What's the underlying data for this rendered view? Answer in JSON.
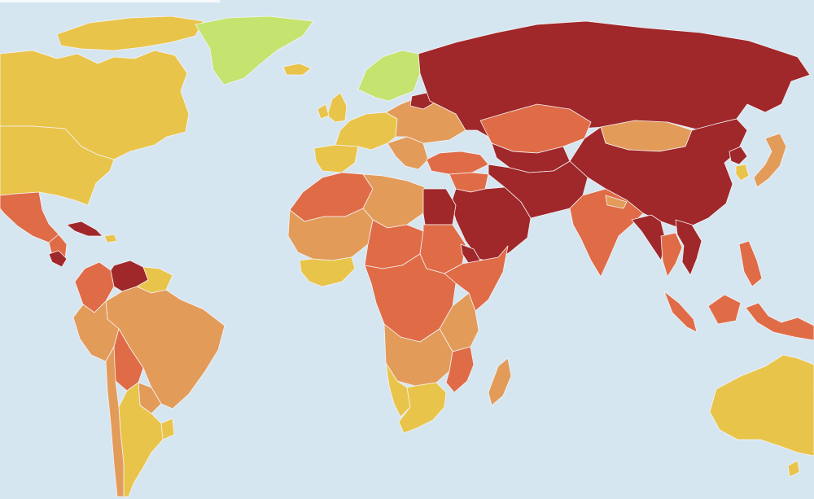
{
  "legend": {
    "levels": [
      {
        "key": "good",
        "color": "#c4e36f"
      },
      {
        "key": "satisfactory",
        "color": "#e9c44a"
      },
      {
        "key": "problematic",
        "color": "#e39b5a"
      },
      {
        "key": "difficult",
        "color": "#e06b47"
      },
      {
        "key": "very_serious",
        "color": "#a0272a"
      }
    ]
  },
  "ocean_color": "#d6e6f1",
  "border_color": "#f4f4f4",
  "regions": [
    {
      "id": "canada",
      "level": "satisfactory"
    },
    {
      "id": "arctic-islands",
      "level": "satisfactory"
    },
    {
      "id": "usa",
      "level": "satisfactory"
    },
    {
      "id": "mexico",
      "level": "difficult"
    },
    {
      "id": "central-america",
      "level": "difficult"
    },
    {
      "id": "nicaragua",
      "level": "very_serious"
    },
    {
      "id": "cuba",
      "level": "very_serious"
    },
    {
      "id": "greenland",
      "level": "good"
    },
    {
      "id": "iceland",
      "level": "satisfactory"
    },
    {
      "id": "scandinavia",
      "level": "good"
    },
    {
      "id": "uk",
      "level": "satisfactory"
    },
    {
      "id": "ireland",
      "level": "satisfactory"
    },
    {
      "id": "iberia",
      "level": "satisfactory"
    },
    {
      "id": "western-europe",
      "level": "satisfactory"
    },
    {
      "id": "eastern-europe",
      "level": "problematic"
    },
    {
      "id": "balkans",
      "level": "problematic"
    },
    {
      "id": "belarus",
      "level": "very_serious"
    },
    {
      "id": "russia",
      "level": "very_serious"
    },
    {
      "id": "turkey",
      "level": "difficult"
    },
    {
      "id": "kazakhstan",
      "level": "difficult"
    },
    {
      "id": "central-asia",
      "level": "very_serious"
    },
    {
      "id": "mongolia",
      "level": "problematic"
    },
    {
      "id": "china",
      "level": "very_serious"
    },
    {
      "id": "korea-north",
      "level": "very_serious"
    },
    {
      "id": "korea-south",
      "level": "satisfactory"
    },
    {
      "id": "japan",
      "level": "problematic"
    },
    {
      "id": "middle-east",
      "level": "very_serious"
    },
    {
      "id": "levant",
      "level": "difficult"
    },
    {
      "id": "iran-afg-pak",
      "level": "very_serious"
    },
    {
      "id": "india",
      "level": "difficult"
    },
    {
      "id": "nepal",
      "level": "problematic"
    },
    {
      "id": "myanmar-bangladesh",
      "level": "very_serious"
    },
    {
      "id": "thailand",
      "level": "difficult"
    },
    {
      "id": "vietnam-laos",
      "level": "very_serious"
    },
    {
      "id": "sumatra",
      "level": "difficult"
    },
    {
      "id": "borneo",
      "level": "difficult"
    },
    {
      "id": "sulawesi-png",
      "level": "difficult"
    },
    {
      "id": "philippines",
      "level": "difficult"
    },
    {
      "id": "australia",
      "level": "satisfactory"
    },
    {
      "id": "nz",
      "level": "satisfactory"
    },
    {
      "id": "north-africa-west",
      "level": "difficult"
    },
    {
      "id": "north-africa-central",
      "level": "problematic"
    },
    {
      "id": "egypt",
      "level": "very_serious"
    },
    {
      "id": "west-africa",
      "level": "problematic"
    },
    {
      "id": "west-africa-coast",
      "level": "satisfactory"
    },
    {
      "id": "sahel",
      "level": "difficult"
    },
    {
      "id": "sudan",
      "level": "difficult"
    },
    {
      "id": "horn-of-africa",
      "level": "difficult"
    },
    {
      "id": "eritrea",
      "level": "very_serious"
    },
    {
      "id": "central-africa",
      "level": "difficult"
    },
    {
      "id": "east-africa",
      "level": "problematic"
    },
    {
      "id": "southern-africa",
      "level": "problematic"
    },
    {
      "id": "namibia",
      "level": "satisfactory"
    },
    {
      "id": "south-africa",
      "level": "satisfactory"
    },
    {
      "id": "mozambique",
      "level": "difficult"
    },
    {
      "id": "madagascar",
      "level": "problematic"
    },
    {
      "id": "colombia",
      "level": "difficult"
    },
    {
      "id": "venezuela",
      "level": "very_serious"
    },
    {
      "id": "guianas",
      "level": "satisfactory"
    },
    {
      "id": "brazil",
      "level": "problematic"
    },
    {
      "id": "peru",
      "level": "problematic"
    },
    {
      "id": "bolivia",
      "level": "difficult"
    },
    {
      "id": "paraguay",
      "level": "problematic"
    },
    {
      "id": "argentina",
      "level": "satisfactory"
    },
    {
      "id": "chile",
      "level": "problematic"
    },
    {
      "id": "uruguay",
      "level": "satisfactory"
    }
  ]
}
